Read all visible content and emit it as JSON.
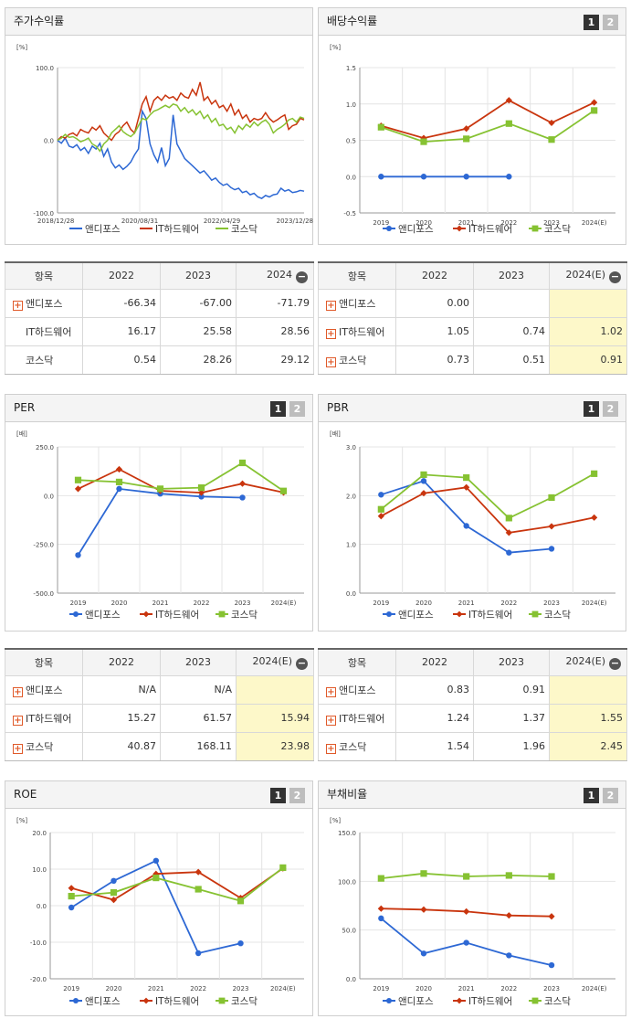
{
  "colors": {
    "andi": "#2d68d4",
    "it": "#c9350e",
    "kosdaq": "#86c232"
  },
  "legend": [
    "앤디포스",
    "IT하드웨어",
    "코스닥"
  ],
  "buttons": {
    "b1": "1",
    "b2": "2"
  },
  "panels": {
    "stock": {
      "title": "주가수익률",
      "unit": "[%]"
    },
    "dividend": {
      "title": "배당수익률",
      "unit": "[%]"
    },
    "per": {
      "title": "PER",
      "unit": "[배]"
    },
    "pbr": {
      "title": "PBR",
      "unit": "[배]"
    },
    "roe": {
      "title": "ROE",
      "unit": "[%]"
    },
    "debt": {
      "title": "부채비율",
      "unit": "[%]"
    }
  },
  "tables": {
    "stock": {
      "header": [
        "항목",
        "2022",
        "2023",
        "2024"
      ],
      "rows": [
        {
          "name": "앤디포스",
          "plus": true,
          "v": [
            "-66.34",
            "-67.00",
            "-71.79"
          ]
        },
        {
          "name": "IT하드웨어",
          "plus": false,
          "v": [
            "16.17",
            "25.58",
            "28.56"
          ]
        },
        {
          "name": "코스닥",
          "plus": false,
          "v": [
            "0.54",
            "28.26",
            "29.12"
          ]
        }
      ]
    },
    "dividend": {
      "header": [
        "항목",
        "2022",
        "2023",
        "2024(E)"
      ],
      "rows": [
        {
          "name": "앤디포스",
          "plus": true,
          "v": [
            "0.00",
            "",
            ""
          ]
        },
        {
          "name": "IT하드웨어",
          "plus": true,
          "v": [
            "1.05",
            "0.74",
            "1.02"
          ]
        },
        {
          "name": "코스닥",
          "plus": true,
          "v": [
            "0.73",
            "0.51",
            "0.91"
          ]
        }
      ]
    },
    "per": {
      "header": [
        "항목",
        "2022",
        "2023",
        "2024(E)"
      ],
      "rows": [
        {
          "name": "앤디포스",
          "plus": true,
          "v": [
            "N/A",
            "N/A",
            ""
          ]
        },
        {
          "name": "IT하드웨어",
          "plus": true,
          "v": [
            "15.27",
            "61.57",
            "15.94"
          ]
        },
        {
          "name": "코스닥",
          "plus": true,
          "v": [
            "40.87",
            "168.11",
            "23.98"
          ]
        }
      ]
    },
    "pbr": {
      "header": [
        "항목",
        "2022",
        "2023",
        "2024(E)"
      ],
      "rows": [
        {
          "name": "앤디포스",
          "plus": true,
          "v": [
            "0.83",
            "0.91",
            ""
          ]
        },
        {
          "name": "IT하드웨어",
          "plus": true,
          "v": [
            "1.24",
            "1.37",
            "1.55"
          ]
        },
        {
          "name": "코스닥",
          "plus": true,
          "v": [
            "1.54",
            "1.96",
            "2.45"
          ]
        }
      ]
    }
  },
  "chart_data": [
    {
      "id": "stock",
      "type": "line",
      "x_ticks": [
        "2018/12/28",
        "2020/08/31",
        "2022/04/29",
        "2023/12/28"
      ],
      "y_ticks": [
        "100.0",
        "0.0",
        "-100.0"
      ],
      "ylim": [
        -100,
        100
      ],
      "series": [
        {
          "name": "앤디포스",
          "values": [
            0,
            -4,
            3,
            -8,
            -10,
            -6,
            -14,
            -10,
            -18,
            -8,
            -12,
            -4,
            -22,
            -12,
            -30,
            -38,
            -34,
            -40,
            -36,
            -30,
            -20,
            -12,
            40,
            30,
            -5,
            -20,
            -30,
            -10,
            -35,
            -25,
            35,
            -5,
            -15,
            -25,
            -30,
            -35,
            -40,
            -45,
            -42,
            -48,
            -55,
            -52,
            -58,
            -62,
            -60,
            -65,
            -68,
            -66,
            -72,
            -70,
            -75,
            -73,
            -78,
            -80,
            -76,
            -78,
            -75,
            -74,
            -66,
            -70,
            -68,
            -72,
            -71,
            -69,
            -70
          ]
        },
        {
          "name": "IT하드웨어",
          "values": [
            0,
            5,
            3,
            8,
            10,
            6,
            15,
            12,
            10,
            18,
            14,
            20,
            10,
            5,
            0,
            8,
            12,
            20,
            25,
            15,
            10,
            30,
            50,
            60,
            40,
            55,
            60,
            55,
            62,
            58,
            60,
            55,
            65,
            60,
            58,
            70,
            62,
            80,
            55,
            60,
            50,
            55,
            45,
            48,
            40,
            50,
            35,
            42,
            30,
            35,
            25,
            30,
            28,
            30,
            38,
            30,
            25,
            28,
            32,
            35,
            15,
            20,
            22,
            30,
            28
          ]
        },
        {
          "name": "코스닥",
          "values": [
            0,
            3,
            8,
            4,
            5,
            2,
            -2,
            0,
            3,
            -5,
            -8,
            -15,
            -5,
            0,
            10,
            15,
            20,
            12,
            8,
            5,
            10,
            20,
            30,
            28,
            35,
            40,
            42,
            45,
            48,
            45,
            50,
            48,
            40,
            45,
            38,
            42,
            35,
            40,
            30,
            35,
            25,
            30,
            20,
            22,
            15,
            18,
            10,
            20,
            15,
            22,
            18,
            25,
            20,
            25,
            28,
            22,
            10,
            15,
            18,
            22,
            28,
            30,
            25,
            32,
            30
          ]
        }
      ]
    },
    {
      "id": "dividend",
      "type": "line",
      "categories": [
        "2019",
        "2020",
        "2021",
        "2022",
        "2023",
        "2024(E)"
      ],
      "y_ticks": [
        "1.5",
        "1.0",
        "0.5",
        "0.0",
        "-0.5"
      ],
      "ylim": [
        -0.5,
        1.5
      ],
      "series": [
        {
          "name": "앤디포스",
          "values": [
            0,
            0,
            0,
            0,
            null,
            null
          ]
        },
        {
          "name": "IT하드웨어",
          "values": [
            0.7,
            0.53,
            0.66,
            1.05,
            0.74,
            1.02
          ]
        },
        {
          "name": "코스닥",
          "values": [
            0.68,
            0.48,
            0.52,
            0.73,
            0.51,
            0.91
          ]
        }
      ]
    },
    {
      "id": "per",
      "type": "line",
      "categories": [
        "2019",
        "2020",
        "2021",
        "2022",
        "2023",
        "2024(E)"
      ],
      "y_ticks": [
        "250.0",
        "0.0",
        "-250.0",
        "-500.0"
      ],
      "ylim": [
        -500,
        250
      ],
      "series": [
        {
          "name": "앤디포스",
          "values": [
            -305,
            35,
            10,
            -5,
            -10,
            null
          ]
        },
        {
          "name": "IT하드웨어",
          "values": [
            35,
            135,
            25,
            15.27,
            61.57,
            15.94
          ]
        },
        {
          "name": "코스닥",
          "values": [
            80,
            70,
            35,
            40.87,
            168.11,
            23.98
          ]
        }
      ]
    },
    {
      "id": "pbr",
      "type": "line",
      "categories": [
        "2019",
        "2020",
        "2021",
        "2022",
        "2023",
        "2024(E)"
      ],
      "y_ticks": [
        "3.0",
        "2.0",
        "1.0",
        "0.0"
      ],
      "ylim": [
        0,
        3
      ],
      "series": [
        {
          "name": "앤디포스",
          "values": [
            2.02,
            2.3,
            1.38,
            0.83,
            0.91,
            null
          ]
        },
        {
          "name": "IT하드웨어",
          "values": [
            1.58,
            2.05,
            2.17,
            1.24,
            1.37,
            1.55
          ]
        },
        {
          "name": "코스닥",
          "values": [
            1.72,
            2.43,
            2.37,
            1.54,
            1.96,
            2.45
          ]
        }
      ]
    },
    {
      "id": "roe",
      "type": "line",
      "categories": [
        "2019",
        "2020",
        "2021",
        "2022",
        "2023",
        "2024(E)"
      ],
      "y_ticks": [
        "20.0",
        "10.0",
        "0.0",
        "-10.0",
        "-20.0"
      ],
      "ylim": [
        -20,
        20
      ],
      "series": [
        {
          "name": "앤디포스",
          "values": [
            -0.5,
            6.8,
            12.3,
            -13.0,
            -10.3,
            null
          ]
        },
        {
          "name": "IT하드웨어",
          "values": [
            4.8,
            1.6,
            8.7,
            9.2,
            2.1,
            10.2
          ]
        },
        {
          "name": "코스닥",
          "values": [
            2.6,
            3.6,
            7.6,
            4.5,
            1.3,
            10.4
          ]
        }
      ]
    },
    {
      "id": "debt",
      "type": "line",
      "categories": [
        "2019",
        "2020",
        "2021",
        "2022",
        "2023",
        "2024(E)"
      ],
      "y_ticks": [
        "150.0",
        "100.0",
        "50.0",
        "0.0"
      ],
      "ylim": [
        0,
        150
      ],
      "series": [
        {
          "name": "앤디포스",
          "values": [
            62,
            26,
            37,
            24,
            14,
            null
          ]
        },
        {
          "name": "IT하드웨어",
          "values": [
            72,
            71,
            69,
            65,
            64,
            null
          ]
        },
        {
          "name": "코스닥",
          "values": [
            103,
            108,
            105,
            106,
            105,
            null
          ]
        }
      ]
    }
  ]
}
